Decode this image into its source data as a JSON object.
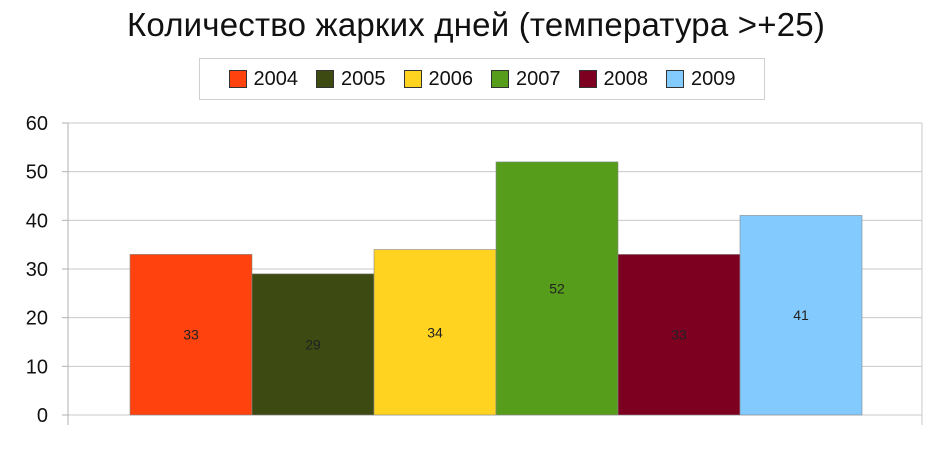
{
  "chart_data": {
    "type": "bar",
    "title": "Количество жарких дней (температура >+25)",
    "xlabel": "",
    "ylabel": "",
    "ylim": [
      0,
      60
    ],
    "yticks": [
      0,
      10,
      20,
      30,
      40,
      50,
      60
    ],
    "grid": true,
    "legend_position": "top",
    "series": [
      {
        "name": "2004",
        "value": 33,
        "color": "#ff420e"
      },
      {
        "name": "2005",
        "value": 29,
        "color": "#3d4a12"
      },
      {
        "name": "2006",
        "value": 34,
        "color": "#ffd320"
      },
      {
        "name": "2007",
        "value": 52,
        "color": "#579d1c"
      },
      {
        "name": "2008",
        "value": 33,
        "color": "#7e0021"
      },
      {
        "name": "2009",
        "value": 41,
        "color": "#83caff"
      }
    ],
    "data_labels": [
      "33",
      "29",
      "34",
      "52",
      "33",
      "41"
    ]
  }
}
